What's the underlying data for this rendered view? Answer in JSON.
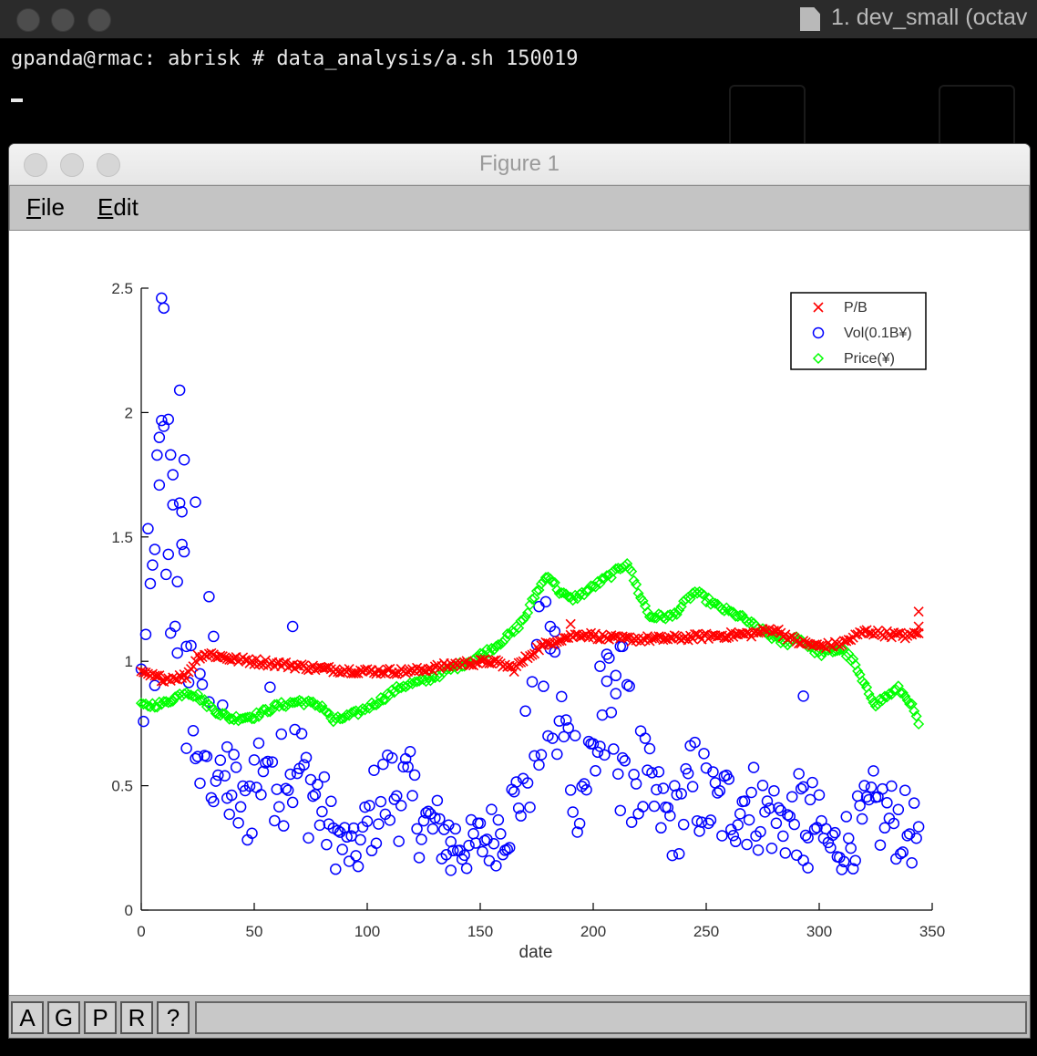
{
  "terminal": {
    "title": "1. dev_small (octav",
    "command_line": "gpanda@rmac: abrisk # data_analysis/a.sh 150019"
  },
  "figure_window": {
    "title": "Figure 1",
    "menu": [
      "File",
      "Edit"
    ],
    "toolbar_buttons": [
      "A",
      "G",
      "P",
      "R",
      "?"
    ]
  },
  "colors": {
    "pb": "#ff0000",
    "vol": "#0000ff",
    "price": "#00ff00"
  },
  "chart_data": {
    "type": "scatter",
    "xlabel": "date",
    "xlim": [
      0,
      350
    ],
    "ylim": [
      0,
      2.5
    ],
    "xticks": [
      0,
      50,
      100,
      150,
      200,
      250,
      300,
      350
    ],
    "yticks": [
      0,
      0.5,
      1,
      1.5,
      2,
      2.5
    ],
    "legend_position": "top-right",
    "series": [
      {
        "name": "P/B",
        "marker": "x",
        "color": "#ff0000",
        "anchors": [
          [
            0,
            0.95
          ],
          [
            10,
            0.93
          ],
          [
            20,
            0.94
          ],
          [
            25,
            1.02
          ],
          [
            30,
            1.03
          ],
          [
            40,
            1.01
          ],
          [
            60,
            0.99
          ],
          [
            80,
            0.97
          ],
          [
            100,
            0.96
          ],
          [
            120,
            0.96
          ],
          [
            140,
            0.99
          ],
          [
            155,
            1.0
          ],
          [
            165,
            0.97
          ],
          [
            175,
            1.05
          ],
          [
            185,
            1.09
          ],
          [
            195,
            1.11
          ],
          [
            210,
            1.09
          ],
          [
            230,
            1.09
          ],
          [
            250,
            1.1
          ],
          [
            270,
            1.11
          ],
          [
            280,
            1.13
          ],
          [
            290,
            1.08
          ],
          [
            300,
            1.06
          ],
          [
            310,
            1.07
          ],
          [
            320,
            1.12
          ],
          [
            340,
            1.1
          ],
          [
            344,
            1.12
          ]
        ],
        "outliers": [
          [
            344,
            1.2
          ],
          [
            344,
            1.14
          ],
          [
            190,
            1.15
          ]
        ]
      },
      {
        "name": "Vol(0.1B¥)",
        "marker": "o",
        "color": "#0000ff",
        "anchors": [
          [
            0,
            0.85
          ],
          [
            5,
            1.2
          ],
          [
            10,
            1.6
          ],
          [
            15,
            1.5
          ],
          [
            20,
            1.0
          ],
          [
            25,
            0.7
          ],
          [
            35,
            0.6
          ],
          [
            45,
            0.38
          ],
          [
            55,
            0.65
          ],
          [
            65,
            0.6
          ],
          [
            75,
            0.5
          ],
          [
            85,
            0.3
          ],
          [
            95,
            0.22
          ],
          [
            105,
            0.45
          ],
          [
            115,
            0.5
          ],
          [
            125,
            0.35
          ],
          [
            135,
            0.3
          ],
          [
            145,
            0.25
          ],
          [
            155,
            0.3
          ],
          [
            165,
            0.4
          ],
          [
            172,
            0.65
          ],
          [
            180,
            0.9
          ],
          [
            188,
            0.65
          ],
          [
            195,
            0.5
          ],
          [
            205,
            0.75
          ],
          [
            215,
            0.65
          ],
          [
            225,
            0.45
          ],
          [
            235,
            0.35
          ],
          [
            245,
            0.5
          ],
          [
            255,
            0.4
          ],
          [
            265,
            0.45
          ],
          [
            275,
            0.4
          ],
          [
            285,
            0.35
          ],
          [
            295,
            0.4
          ],
          [
            305,
            0.25
          ],
          [
            315,
            0.3
          ],
          [
            325,
            0.4
          ],
          [
            335,
            0.35
          ],
          [
            344,
            0.3
          ]
        ],
        "outliers": [
          [
            9,
            2.46
          ],
          [
            10,
            2.42
          ],
          [
            17,
            2.09
          ],
          [
            8,
            1.9
          ],
          [
            13,
            1.83
          ],
          [
            19,
            1.81
          ],
          [
            14,
            1.75
          ],
          [
            24,
            1.64
          ],
          [
            18,
            1.47
          ],
          [
            6,
            1.45
          ],
          [
            12,
            1.43
          ],
          [
            16,
            1.32
          ],
          [
            30,
            1.26
          ],
          [
            67,
            1.14
          ],
          [
            32,
            1.1
          ],
          [
            20,
            1.06
          ],
          [
            212,
            1.06
          ],
          [
            213,
            1.06
          ],
          [
            176,
            1.22
          ],
          [
            181,
            1.14
          ],
          [
            183,
            1.12
          ],
          [
            203,
            0.98
          ],
          [
            206,
            0.92
          ],
          [
            210,
            0.87
          ],
          [
            293,
            0.86
          ],
          [
            26,
            0.51
          ],
          [
            38,
            0.45
          ],
          [
            137,
            0.16
          ],
          [
            293,
            0.2
          ],
          [
            295,
            0.17
          ]
        ]
      },
      {
        "name": "Price(¥)",
        "marker": "diamond",
        "color": "#00ff00",
        "anchors": [
          [
            0,
            0.82
          ],
          [
            10,
            0.83
          ],
          [
            20,
            0.88
          ],
          [
            25,
            0.86
          ],
          [
            30,
            0.82
          ],
          [
            35,
            0.79
          ],
          [
            40,
            0.77
          ],
          [
            50,
            0.78
          ],
          [
            60,
            0.82
          ],
          [
            70,
            0.84
          ],
          [
            80,
            0.82
          ],
          [
            85,
            0.76
          ],
          [
            95,
            0.79
          ],
          [
            105,
            0.84
          ],
          [
            115,
            0.9
          ],
          [
            125,
            0.92
          ],
          [
            135,
            0.96
          ],
          [
            145,
            1.0
          ],
          [
            155,
            1.05
          ],
          [
            165,
            1.12
          ],
          [
            170,
            1.18
          ],
          [
            175,
            1.28
          ],
          [
            180,
            1.35
          ],
          [
            185,
            1.28
          ],
          [
            190,
            1.25
          ],
          [
            195,
            1.27
          ],
          [
            200,
            1.3
          ],
          [
            205,
            1.33
          ],
          [
            210,
            1.36
          ],
          [
            215,
            1.4
          ],
          [
            220,
            1.28
          ],
          [
            225,
            1.18
          ],
          [
            235,
            1.18
          ],
          [
            245,
            1.28
          ],
          [
            255,
            1.22
          ],
          [
            265,
            1.18
          ],
          [
            275,
            1.12
          ],
          [
            285,
            1.07
          ],
          [
            290,
            1.1
          ],
          [
            300,
            1.03
          ],
          [
            310,
            1.05
          ],
          [
            315,
            1.0
          ],
          [
            320,
            0.9
          ],
          [
            325,
            0.83
          ],
          [
            330,
            0.86
          ],
          [
            335,
            0.89
          ],
          [
            340,
            0.84
          ],
          [
            344,
            0.75
          ]
        ],
        "outliers": []
      }
    ]
  }
}
